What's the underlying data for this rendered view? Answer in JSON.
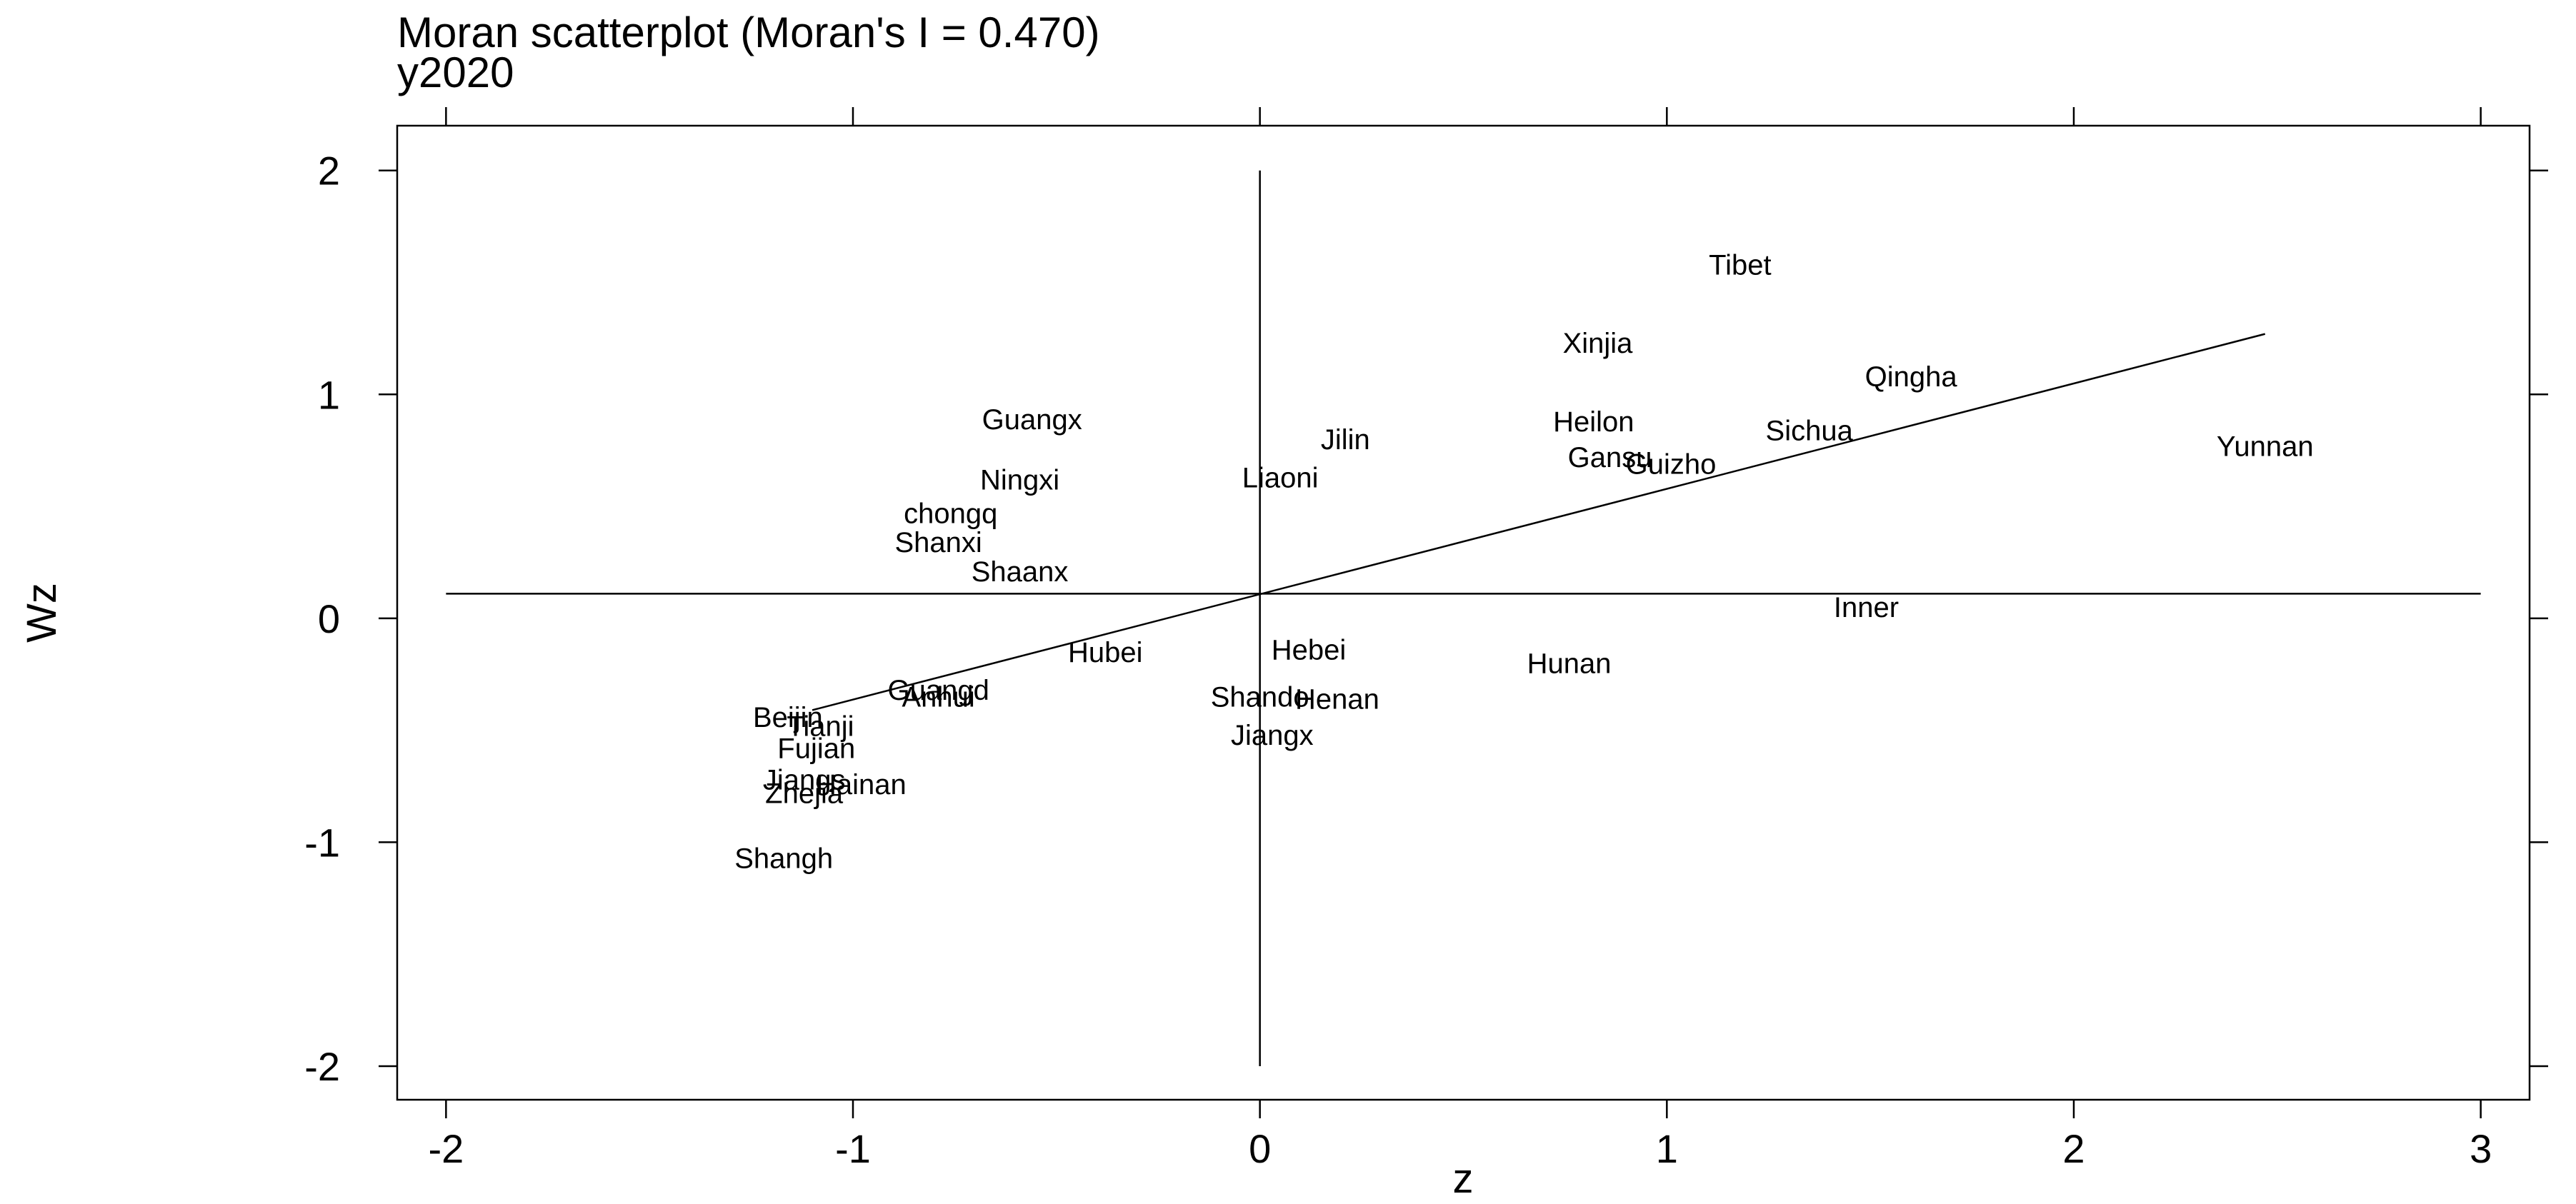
{
  "chart_data": {
    "type": "scatter",
    "title": "Moran scatterplot (Moran's I = 0.470)",
    "subtitle": "y2020",
    "xlabel": "z",
    "ylabel": "Wz",
    "xlim": [
      -2.12,
      3.12
    ],
    "ylim": [
      -2.15,
      2.2
    ],
    "x_ticks": [
      -2,
      -1,
      0,
      1,
      2,
      3
    ],
    "x_tick_labels": [
      "-2",
      "-1",
      "0",
      "1",
      "2",
      "3"
    ],
    "y_ticks": [
      -2,
      -1,
      0,
      1,
      2
    ],
    "y_tick_labels": [
      "-2",
      "-1",
      "0",
      "1",
      "2"
    ],
    "ref_line_h": {
      "y": 0.11,
      "x_from": -2.0,
      "x_to": 3.0
    },
    "ref_line_v": {
      "x": 0.0,
      "y_from": -2.0,
      "y_to": 2.0
    },
    "fit_line": {
      "x1": -1.1,
      "y1": -0.41,
      "x2": 2.47,
      "y2": 1.27
    },
    "points": [
      {
        "label": "Tibet",
        "x": 1.18,
        "y": 1.58
      },
      {
        "label": "Xinjia",
        "x": 0.83,
        "y": 1.23
      },
      {
        "label": "Qingha",
        "x": 1.6,
        "y": 1.08
      },
      {
        "label": "Guangx",
        "x": -0.56,
        "y": 0.89
      },
      {
        "label": "Jilin",
        "x": 0.21,
        "y": 0.8
      },
      {
        "label": "Heilon",
        "x": 0.82,
        "y": 0.88
      },
      {
        "label": "Sichua",
        "x": 1.35,
        "y": 0.84
      },
      {
        "label": "Yunnan",
        "x": 2.47,
        "y": 0.77
      },
      {
        "label": "Gansu",
        "x": 0.86,
        "y": 0.72
      },
      {
        "label": "Guizho",
        "x": 1.01,
        "y": 0.69
      },
      {
        "label": "Ningxi",
        "x": -0.59,
        "y": 0.62
      },
      {
        "label": "Liaoni",
        "x": 0.05,
        "y": 0.63
      },
      {
        "label": "chongq",
        "x": -0.76,
        "y": 0.47
      },
      {
        "label": "Shanxi",
        "x": -0.79,
        "y": 0.34
      },
      {
        "label": "Shaanx",
        "x": -0.59,
        "y": 0.21
      },
      {
        "label": "Inner",
        "x": 1.49,
        "y": 0.05
      },
      {
        "label": "Hubei",
        "x": -0.38,
        "y": -0.15
      },
      {
        "label": "Hebei",
        "x": 0.12,
        "y": -0.14
      },
      {
        "label": "Hunan",
        "x": 0.76,
        "y": -0.2
      },
      {
        "label": "Guangd",
        "x": -0.79,
        "y": -0.32
      },
      {
        "label": "Anhui",
        "x": -0.79,
        "y": -0.35
      },
      {
        "label": "Shando",
        "x": 0.0,
        "y": -0.35
      },
      {
        "label": "Henan",
        "x": 0.19,
        "y": -0.36
      },
      {
        "label": "Beijin",
        "x": -1.16,
        "y": -0.44
      },
      {
        "label": "Tianji",
        "x": -1.08,
        "y": -0.48
      },
      {
        "label": "Jiangx",
        "x": 0.03,
        "y": -0.52
      },
      {
        "label": "Fujian",
        "x": -1.09,
        "y": -0.58
      },
      {
        "label": "Jiangs",
        "x": -1.12,
        "y": -0.72
      },
      {
        "label": "Hainan",
        "x": -0.98,
        "y": -0.74
      },
      {
        "label": "Zhejia",
        "x": -1.12,
        "y": -0.78
      },
      {
        "label": "Shangh",
        "x": -1.17,
        "y": -1.07
      }
    ]
  }
}
